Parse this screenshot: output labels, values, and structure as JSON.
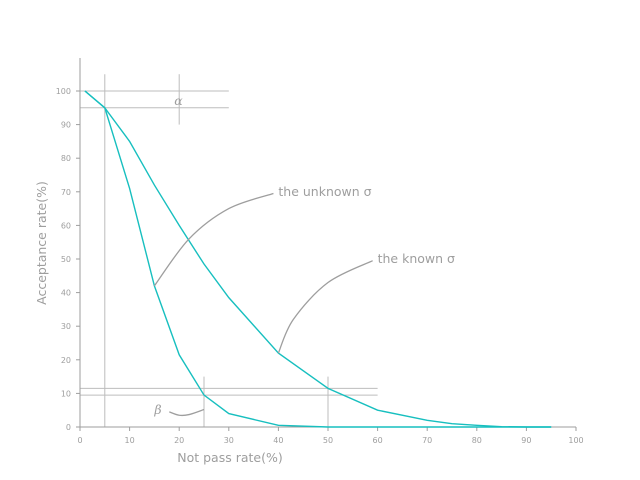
{
  "chart_data": {
    "type": "line",
    "title": "",
    "xlabel": "Not pass rate(%)",
    "ylabel": "Acceptance rate(%)",
    "xlim": [
      0,
      100
    ],
    "ylim": [
      0,
      110
    ],
    "xticks": [
      0,
      10,
      20,
      30,
      40,
      50,
      60,
      70,
      80,
      90,
      100
    ],
    "yticks": [
      0,
      10,
      20,
      30,
      40,
      50,
      60,
      70,
      80,
      90,
      100
    ],
    "grid": false,
    "legend": "none",
    "colors": {
      "curve": "#17bfbf",
      "axis": "#9e9e9e",
      "reference": "#bdbdbd"
    },
    "series": [
      {
        "x": [
          1,
          5,
          10,
          15,
          20,
          25,
          30,
          40,
          50,
          60,
          70,
          75,
          80,
          85,
          90,
          95
        ],
        "y": [
          100,
          95,
          85,
          72,
          60,
          48.5,
          38.5,
          22,
          11.5,
          5,
          2,
          1,
          0.5,
          0.1,
          0,
          0
        ]
      },
      {
        "x": [
          1,
          5,
          10,
          15,
          20,
          25,
          30,
          40,
          50,
          60,
          70,
          80,
          90,
          95
        ],
        "y": [
          100,
          95,
          71,
          42,
          21.5,
          9.5,
          4,
          0.5,
          0,
          0,
          0,
          0,
          0,
          0
        ]
      }
    ],
    "reference_lines": {
      "horizontal": [
        {
          "y": 100,
          "x_from": 0,
          "x_to": 30
        },
        {
          "y": 95,
          "x_from": 0,
          "x_to": 30
        },
        {
          "y": 11.5,
          "x_from": 0,
          "x_to": 60
        },
        {
          "y": 9.5,
          "x_from": 0,
          "x_to": 60
        }
      ],
      "vertical": [
        {
          "x": 5,
          "y_from": 0,
          "y_to": 105
        },
        {
          "x": 20,
          "y_from": 90,
          "y_to": 105
        },
        {
          "x": 25,
          "y_from": 0,
          "y_to": 15
        },
        {
          "x": 50,
          "y_from": 0,
          "y_to": 15
        }
      ]
    },
    "annotations": [
      {
        "id": "unknown",
        "text": "the unknown σ",
        "text_x": 40,
        "text_y": 70,
        "arrow_points": [
          [
            39,
            69.5
          ],
          [
            30,
            65
          ],
          [
            22,
            56
          ],
          [
            15,
            42
          ]
        ]
      },
      {
        "id": "known",
        "text": "the known σ",
        "text_x": 60,
        "text_y": 50,
        "arrow_points": [
          [
            59,
            49.5
          ],
          [
            50,
            43
          ],
          [
            43,
            32
          ],
          [
            40,
            22
          ]
        ]
      },
      {
        "id": "alpha",
        "text": "α",
        "text_x": 19,
        "text_y": 97
      },
      {
        "id": "beta",
        "text": "β",
        "text_x": 15,
        "text_y": 5,
        "arrow_points": [
          [
            18,
            4.5
          ],
          [
            20,
            3.5
          ],
          [
            22,
            3.7
          ],
          [
            25,
            5.2
          ]
        ]
      }
    ]
  }
}
